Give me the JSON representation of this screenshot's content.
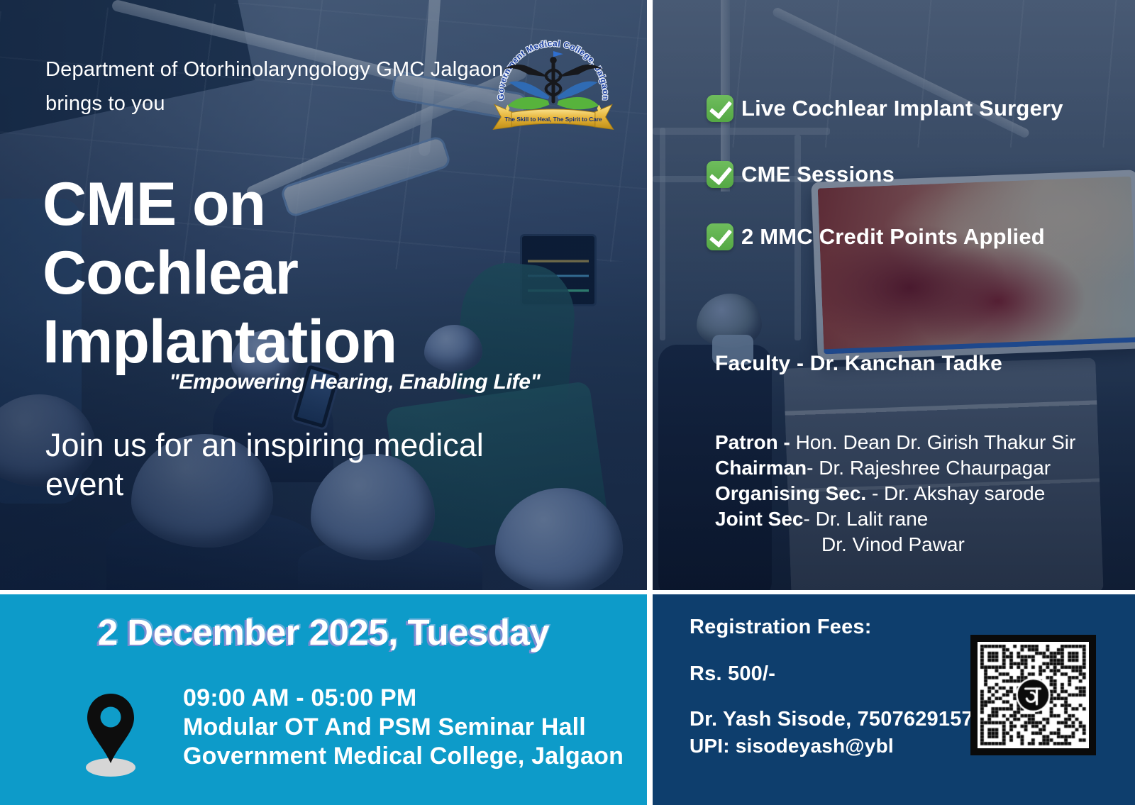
{
  "poster": {
    "header": {
      "kicker_line1": "Department of Otorhinolaryngology GMC Jalgaon,",
      "kicker_line2": "brings to you",
      "title_line1": "CME on",
      "title_line2": "Cochlear",
      "title_line3": "Implantation",
      "quote": "\"Empowering Hearing, Enabling Life\"",
      "tagline_line1": "Join us for an inspiring medical",
      "tagline_line2": "event"
    },
    "logo": {
      "arc_text": "Government Medical College, Jalgaon",
      "ribbon_text": "The Skill to Heal, The Spirit to Care"
    },
    "highlights": [
      {
        "label": "Live Cochlear Implant Surgery"
      },
      {
        "label": "CME Sessions"
      },
      {
        "label": "2 MMC Credit Points Applied"
      }
    ],
    "faculty": "Faculty - Dr. Kanchan Tadke",
    "committee": [
      {
        "role": "Patron - ",
        "name": "Hon. Dean Dr. Girish Thakur Sir"
      },
      {
        "role": "Chairman",
        "name": "- Dr. Rajeshree Chaurpagar"
      },
      {
        "role": "Organising Sec.",
        "name": " - Dr. Akshay sarode"
      },
      {
        "role": "Joint Sec",
        "name": "- Dr. Lalit rane"
      },
      {
        "role": "",
        "name": "Dr. Vinod Pawar"
      }
    ],
    "schedule": {
      "date": "2 December 2025, Tuesday",
      "time": "09:00 AM - 05:00 PM",
      "venue_line1": "Modular OT And PSM Seminar Hall",
      "venue_line2": "Government Medical College, Jalgaon"
    },
    "registration": {
      "heading": "Registration Fees:",
      "fee": "Rs. 500/-",
      "contact": "Dr. Yash Sisode, 7507629157",
      "upi": "UPI: sisodeyash@ybl"
    },
    "colors": {
      "panel_navy": "#0e3e6d",
      "panel_cyan": "#0d9bc9",
      "check_green": "#5cb550",
      "photo_overlay_navy": "#11294d",
      "ribbon_gold": "#e7b53a",
      "date_glow_pink": "#ee7ed8"
    }
  }
}
